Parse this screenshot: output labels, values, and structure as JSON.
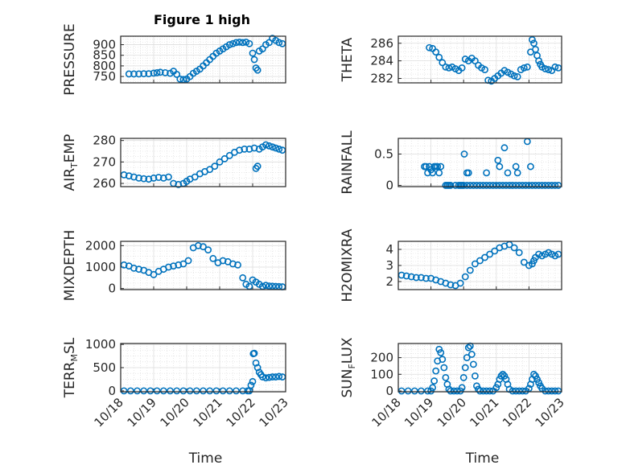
{
  "figure": {
    "title": "Figure 1 high"
  },
  "chart_data": [
    {
      "type": "scatter",
      "ylabel": "PRESSURE",
      "xlabel": "",
      "xlim": [
        0,
        5
      ],
      "ylim": [
        720,
        940
      ],
      "yticks": [
        750,
        800,
        850,
        900
      ],
      "series": [
        {
          "x": [
            0.25,
            0.4,
            0.55,
            0.7,
            0.85,
            1.0,
            1.1,
            1.2,
            1.35,
            1.5,
            1.6,
            1.7,
            1.8,
            1.9,
            2.0,
            2.1,
            2.2,
            2.3,
            2.4,
            2.5,
            2.6,
            2.7,
            2.8,
            2.9,
            3.0,
            3.1,
            3.2,
            3.3,
            3.4,
            3.5,
            3.6,
            3.7,
            3.8,
            3.9,
            4.0,
            4.05,
            4.1,
            4.15,
            4.2,
            4.3,
            4.4,
            4.5,
            4.6,
            4.7,
            4.8,
            4.9
          ],
          "y": [
            762,
            762,
            762,
            763,
            763,
            766,
            768,
            770,
            768,
            765,
            775,
            760,
            738,
            736,
            738,
            750,
            765,
            775,
            785,
            800,
            815,
            830,
            845,
            860,
            870,
            880,
            890,
            900,
            905,
            910,
            912,
            910,
            912,
            905,
            860,
            830,
            790,
            780,
            870,
            880,
            900,
            910,
            930,
            920,
            910,
            905
          ]
        }
      ]
    },
    {
      "type": "scatter",
      "ylabel": "THETA",
      "xlabel": "",
      "xlim": [
        0,
        5
      ],
      "ylim": [
        281.5,
        286.8
      ],
      "yticks": [
        282,
        284,
        286
      ],
      "series": [
        {
          "x": [
            0.95,
            1.05,
            1.15,
            1.25,
            1.35,
            1.45,
            1.55,
            1.65,
            1.75,
            1.85,
            1.95,
            2.05,
            2.15,
            2.25,
            2.35,
            2.45,
            2.55,
            2.65,
            2.75,
            2.85,
            2.95,
            3.05,
            3.15,
            3.25,
            3.35,
            3.45,
            3.55,
            3.65,
            3.75,
            3.85,
            3.95,
            4.05,
            4.1,
            4.15,
            4.2,
            4.25,
            4.3,
            4.35,
            4.4,
            4.5,
            4.6,
            4.7,
            4.8,
            4.9
          ],
          "y": [
            285.5,
            285.4,
            285.0,
            284.4,
            283.8,
            283.3,
            283.2,
            283.3,
            283.1,
            282.9,
            283.2,
            284.2,
            284.0,
            284.3,
            284.0,
            283.5,
            283.2,
            283.0,
            281.8,
            281.7,
            282.0,
            282.3,
            282.6,
            282.9,
            282.7,
            282.5,
            282.3,
            282.2,
            283.0,
            283.2,
            283.3,
            285.0,
            286.4,
            286.0,
            285.3,
            284.6,
            284.0,
            283.6,
            283.3,
            283.1,
            283.0,
            282.9,
            283.3,
            283.2
          ]
        }
      ]
    },
    {
      "type": "scatter",
      "ylabel": "AIR_TEMP",
      "xlabel": "",
      "xlim": [
        0,
        5
      ],
      "ylim": [
        258.5,
        281
      ],
      "yticks": [
        260,
        270,
        280
      ],
      "series": [
        {
          "x": [
            0.1,
            0.25,
            0.4,
            0.55,
            0.7,
            0.85,
            1.0,
            1.15,
            1.3,
            1.45,
            1.6,
            1.75,
            1.9,
            2.0,
            2.1,
            2.25,
            2.4,
            2.55,
            2.7,
            2.85,
            3.0,
            3.15,
            3.3,
            3.45,
            3.6,
            3.75,
            3.9,
            4.05,
            4.1,
            4.15,
            4.2,
            4.3,
            4.4,
            4.5,
            4.6,
            4.7,
            4.8,
            4.9
          ],
          "y": [
            264,
            263.5,
            263,
            262.5,
            262.2,
            262,
            262.5,
            262.8,
            262.5,
            263,
            260,
            259.5,
            260,
            261,
            262,
            263,
            264.5,
            265.5,
            266.5,
            268,
            270,
            271.5,
            273,
            274.5,
            275.5,
            276,
            276,
            276.5,
            267,
            268,
            276,
            277,
            278,
            277.5,
            277,
            276.5,
            276,
            275.5
          ]
        }
      ]
    },
    {
      "type": "scatter",
      "ylabel": "RAINFALL",
      "xlabel": "",
      "xlim": [
        0,
        5
      ],
      "ylim": [
        -0.02,
        0.75
      ],
      "yticks": [
        0,
        0.5
      ],
      "series": [
        {
          "x": [
            0.8,
            0.85,
            0.9,
            0.95,
            1.0,
            1.05,
            1.1,
            1.15,
            1.2,
            1.25,
            1.3,
            1.45,
            1.5,
            1.55,
            1.6,
            1.75,
            1.85,
            1.9,
            1.95,
            2.0,
            2.1,
            2.2,
            2.3,
            2.4,
            2.5,
            2.6,
            2.7,
            2.8,
            2.9,
            3.0,
            3.1,
            3.2,
            3.3,
            3.4,
            3.5,
            3.6,
            3.7,
            3.8,
            3.9,
            4.0,
            4.1,
            4.2,
            4.3,
            4.4,
            4.5,
            4.6,
            4.7,
            4.8,
            4.9,
            2.02,
            2.1,
            2.15,
            2.7,
            3.05,
            3.1,
            3.25,
            3.35,
            3.6,
            3.65,
            3.95,
            4.05
          ],
          "y": [
            0.3,
            0.3,
            0.2,
            0.3,
            0.25,
            0.2,
            0.3,
            0.3,
            0.3,
            0.2,
            0.3,
            0,
            0,
            0,
            0,
            0,
            0,
            0,
            0,
            0,
            0,
            0,
            0,
            0,
            0,
            0,
            0,
            0,
            0,
            0,
            0,
            0,
            0,
            0,
            0,
            0,
            0,
            0,
            0,
            0,
            0,
            0,
            0,
            0,
            0,
            0,
            0,
            0,
            0,
            0.5,
            0.2,
            0.2,
            0.2,
            0.4,
            0.3,
            0.6,
            0.2,
            0.3,
            0.2,
            0.7,
            0.3
          ]
        }
      ]
    },
    {
      "type": "scatter",
      "ylabel": "MIXDEPTH",
      "xlabel": "",
      "xlim": [
        0,
        5
      ],
      "ylim": [
        -50,
        2200
      ],
      "yticks": [
        0,
        1000,
        2000
      ],
      "series": [
        {
          "x": [
            0.1,
            0.25,
            0.4,
            0.55,
            0.7,
            0.85,
            1.0,
            1.15,
            1.3,
            1.45,
            1.6,
            1.75,
            1.9,
            2.05,
            2.2,
            2.35,
            2.5,
            2.65,
            2.8,
            2.95,
            3.1,
            3.25,
            3.4,
            3.55,
            3.7,
            3.8,
            3.9,
            4.0,
            4.1,
            4.2,
            4.3,
            4.4,
            4.5,
            4.6,
            4.7,
            4.8,
            4.9
          ],
          "y": [
            1100,
            1050,
            950,
            900,
            850,
            750,
            650,
            800,
            900,
            1000,
            1050,
            1100,
            1150,
            1300,
            1900,
            2000,
            1950,
            1800,
            1400,
            1200,
            1300,
            1250,
            1150,
            1100,
            500,
            200,
            100,
            400,
            300,
            200,
            100,
            150,
            120,
            110,
            100,
            90,
            80
          ]
        }
      ]
    },
    {
      "type": "scatter",
      "ylabel": "H2OMIXRA",
      "xlabel": "",
      "xlim": [
        0,
        5
      ],
      "ylim": [
        1.5,
        4.5
      ],
      "yticks": [
        2,
        3,
        4
      ],
      "series": [
        {
          "x": [
            0.1,
            0.25,
            0.4,
            0.55,
            0.7,
            0.85,
            1.0,
            1.15,
            1.3,
            1.45,
            1.6,
            1.75,
            1.9,
            2.05,
            2.2,
            2.35,
            2.5,
            2.65,
            2.8,
            2.95,
            3.1,
            3.25,
            3.4,
            3.55,
            3.7,
            3.85,
            4.0,
            4.1,
            4.15,
            4.2,
            4.3,
            4.4,
            4.5,
            4.6,
            4.7,
            4.8,
            4.9
          ],
          "y": [
            2.4,
            2.35,
            2.3,
            2.25,
            2.25,
            2.2,
            2.2,
            2.1,
            2.0,
            1.9,
            1.8,
            1.75,
            1.9,
            2.3,
            2.7,
            3.1,
            3.3,
            3.5,
            3.7,
            3.9,
            4.1,
            4.2,
            4.3,
            4.1,
            3.8,
            3.2,
            3.0,
            3.1,
            3.3,
            3.5,
            3.7,
            3.6,
            3.7,
            3.8,
            3.7,
            3.6,
            3.7
          ]
        }
      ]
    },
    {
      "type": "scatter",
      "ylabel": "TERR_MSL",
      "xlabel": "Time",
      "xlim": [
        0,
        5
      ],
      "ylim": [
        -20,
        1020
      ],
      "yticks": [
        0,
        500,
        1000
      ],
      "xtick_labels": [
        "10/18",
        "10/19",
        "10/20",
        "10/21",
        "10/22",
        "10/23"
      ],
      "series": [
        {
          "x": [
            0.1,
            0.3,
            0.5,
            0.7,
            0.9,
            1.1,
            1.3,
            1.5,
            1.7,
            1.9,
            2.1,
            2.3,
            2.5,
            2.7,
            2.9,
            3.1,
            3.3,
            3.5,
            3.7,
            3.85,
            3.9,
            3.95,
            4.0,
            4.02,
            4.05,
            4.1,
            4.15,
            4.2,
            4.25,
            4.3,
            4.4,
            4.5,
            4.6,
            4.7,
            4.8,
            4.9
          ],
          "y": [
            0,
            0,
            0,
            0,
            0,
            0,
            0,
            0,
            0,
            0,
            0,
            0,
            0,
            0,
            0,
            0,
            0,
            0,
            0,
            0,
            0,
            120,
            200,
            800,
            810,
            600,
            500,
            400,
            350,
            300,
            280,
            290,
            300,
            300,
            310,
            300
          ]
        }
      ]
    },
    {
      "type": "scatter",
      "ylabel": "SUN_FLUX",
      "xlabel": "Time",
      "xlim": [
        0,
        5
      ],
      "ylim": [
        -5,
        285
      ],
      "yticks": [
        0,
        100,
        200
      ],
      "xtick_labels": [
        "10/18",
        "10/19",
        "10/20",
        "10/21",
        "10/22",
        "10/23"
      ],
      "series": [
        {
          "x": [
            0.1,
            0.3,
            0.5,
            0.7,
            0.9,
            1.0,
            1.05,
            1.1,
            1.15,
            1.2,
            1.25,
            1.3,
            1.35,
            1.4,
            1.45,
            1.5,
            1.55,
            1.6,
            1.7,
            1.8,
            1.9,
            1.95,
            2.0,
            2.05,
            2.1,
            2.15,
            2.2,
            2.25,
            2.3,
            2.35,
            2.4,
            2.45,
            2.5,
            2.6,
            2.7,
            2.8,
            2.9,
            3.0,
            3.05,
            3.1,
            3.15,
            3.2,
            3.25,
            3.3,
            3.35,
            3.4,
            3.5,
            3.6,
            3.7,
            3.8,
            3.9,
            4.0,
            4.05,
            4.1,
            4.15,
            4.2,
            4.25,
            4.3,
            4.35,
            4.4,
            4.5,
            4.6,
            4.7,
            4.8,
            4.9
          ],
          "y": [
            0,
            0,
            0,
            0,
            0,
            0,
            20,
            60,
            120,
            180,
            250,
            230,
            190,
            140,
            80,
            40,
            10,
            0,
            0,
            0,
            0,
            20,
            80,
            140,
            200,
            260,
            270,
            220,
            160,
            90,
            30,
            10,
            0,
            0,
            0,
            0,
            0,
            20,
            40,
            70,
            90,
            100,
            90,
            70,
            40,
            10,
            0,
            0,
            0,
            0,
            0,
            15,
            40,
            70,
            100,
            90,
            70,
            50,
            30,
            15,
            0,
            0,
            0,
            0,
            0
          ]
        }
      ]
    }
  ]
}
